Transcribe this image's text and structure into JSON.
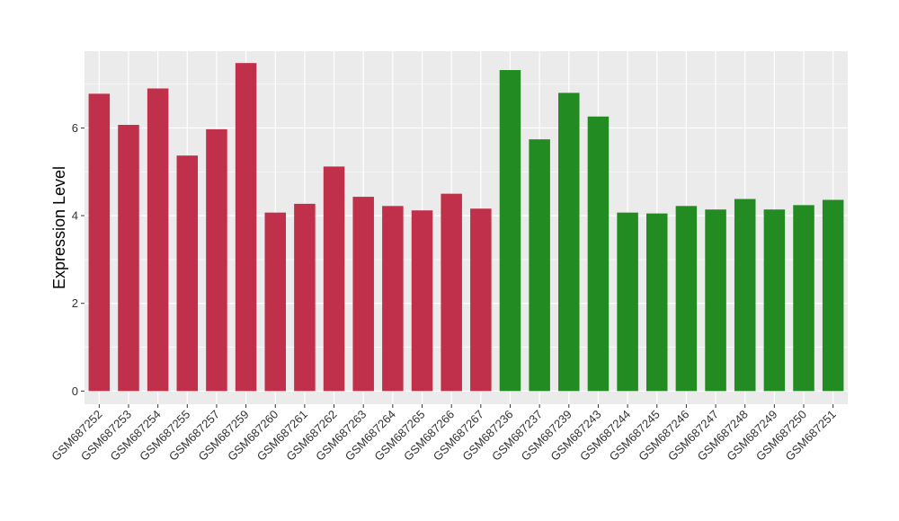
{
  "chart_data": {
    "type": "bar",
    "title": "",
    "xlabel": "",
    "ylabel": "Expression Level",
    "ylim": [
      -0.3,
      7.75
    ],
    "yticks": [
      0,
      2,
      4,
      6
    ],
    "grid": true,
    "legend": "none",
    "panel_background": "#ebebeb",
    "gridline_color": "#ffffff",
    "categories": [
      "GSM687252",
      "GSM687253",
      "GSM687254",
      "GSM687255",
      "GSM687257",
      "GSM687259",
      "GSM687260",
      "GSM687261",
      "GSM687262",
      "GSM687263",
      "GSM687264",
      "GSM687265",
      "GSM687266",
      "GSM687267",
      "GSM687236",
      "GSM687237",
      "GSM687239",
      "GSM687243",
      "GSM687244",
      "GSM687245",
      "GSM687246",
      "GSM687247",
      "GSM687248",
      "GSM687249",
      "GSM687250",
      "GSM687251"
    ],
    "values": [
      6.78,
      6.07,
      6.9,
      5.37,
      5.97,
      7.48,
      4.07,
      4.27,
      5.12,
      4.43,
      4.22,
      4.12,
      4.5,
      4.16,
      7.32,
      5.74,
      6.8,
      6.26,
      4.07,
      4.05,
      4.22,
      4.14,
      4.38,
      4.14,
      4.24,
      4.36
    ],
    "group_colors": [
      "#c0304a",
      "#c0304a",
      "#c0304a",
      "#c0304a",
      "#c0304a",
      "#c0304a",
      "#c0304a",
      "#c0304a",
      "#c0304a",
      "#c0304a",
      "#c0304a",
      "#c0304a",
      "#c0304a",
      "#c0304a",
      "#228b22",
      "#228b22",
      "#228b22",
      "#228b22",
      "#228b22",
      "#228b22",
      "#228b22",
      "#228b22",
      "#228b22",
      "#228b22",
      "#228b22",
      "#228b22"
    ]
  }
}
